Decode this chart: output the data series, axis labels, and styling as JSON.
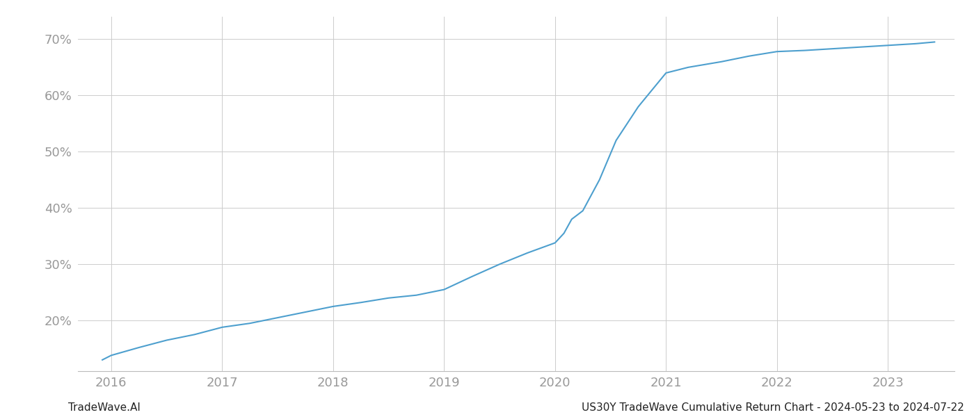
{
  "x_years": [
    2015.92,
    2016.0,
    2016.25,
    2016.5,
    2016.75,
    2017.0,
    2017.25,
    2017.5,
    2017.75,
    2018.0,
    2018.25,
    2018.5,
    2018.75,
    2019.0,
    2019.25,
    2019.5,
    2019.75,
    2020.0,
    2020.08,
    2020.15,
    2020.25,
    2020.4,
    2020.55,
    2020.75,
    2021.0,
    2021.1,
    2021.2,
    2021.5,
    2021.75,
    2022.0,
    2022.25,
    2022.5,
    2022.75,
    2023.0,
    2023.25,
    2023.42
  ],
  "y_values": [
    13.0,
    13.8,
    15.2,
    16.5,
    17.5,
    18.8,
    19.5,
    20.5,
    21.5,
    22.5,
    23.2,
    24.0,
    24.5,
    25.5,
    27.8,
    30.0,
    32.0,
    33.8,
    35.5,
    38.0,
    39.5,
    45.0,
    52.0,
    58.0,
    64.0,
    64.5,
    65.0,
    66.0,
    67.0,
    67.8,
    68.0,
    68.3,
    68.6,
    68.9,
    69.2,
    69.5
  ],
  "line_color": "#4d9fce",
  "background_color": "#ffffff",
  "grid_color": "#cccccc",
  "tick_label_color": "#999999",
  "x_ticks": [
    2016,
    2017,
    2018,
    2019,
    2020,
    2021,
    2022,
    2023
  ],
  "y_ticks": [
    20,
    30,
    40,
    50,
    60,
    70
  ],
  "y_tick_labels": [
    "20%",
    "30%",
    "40%",
    "50%",
    "60%",
    "70%"
  ],
  "xlim": [
    2015.7,
    2023.6
  ],
  "ylim": [
    11,
    74
  ],
  "footer_left": "TradeWave.AI",
  "footer_right": "US30Y TradeWave Cumulative Return Chart - 2024-05-23 to 2024-07-22",
  "line_width": 1.5
}
